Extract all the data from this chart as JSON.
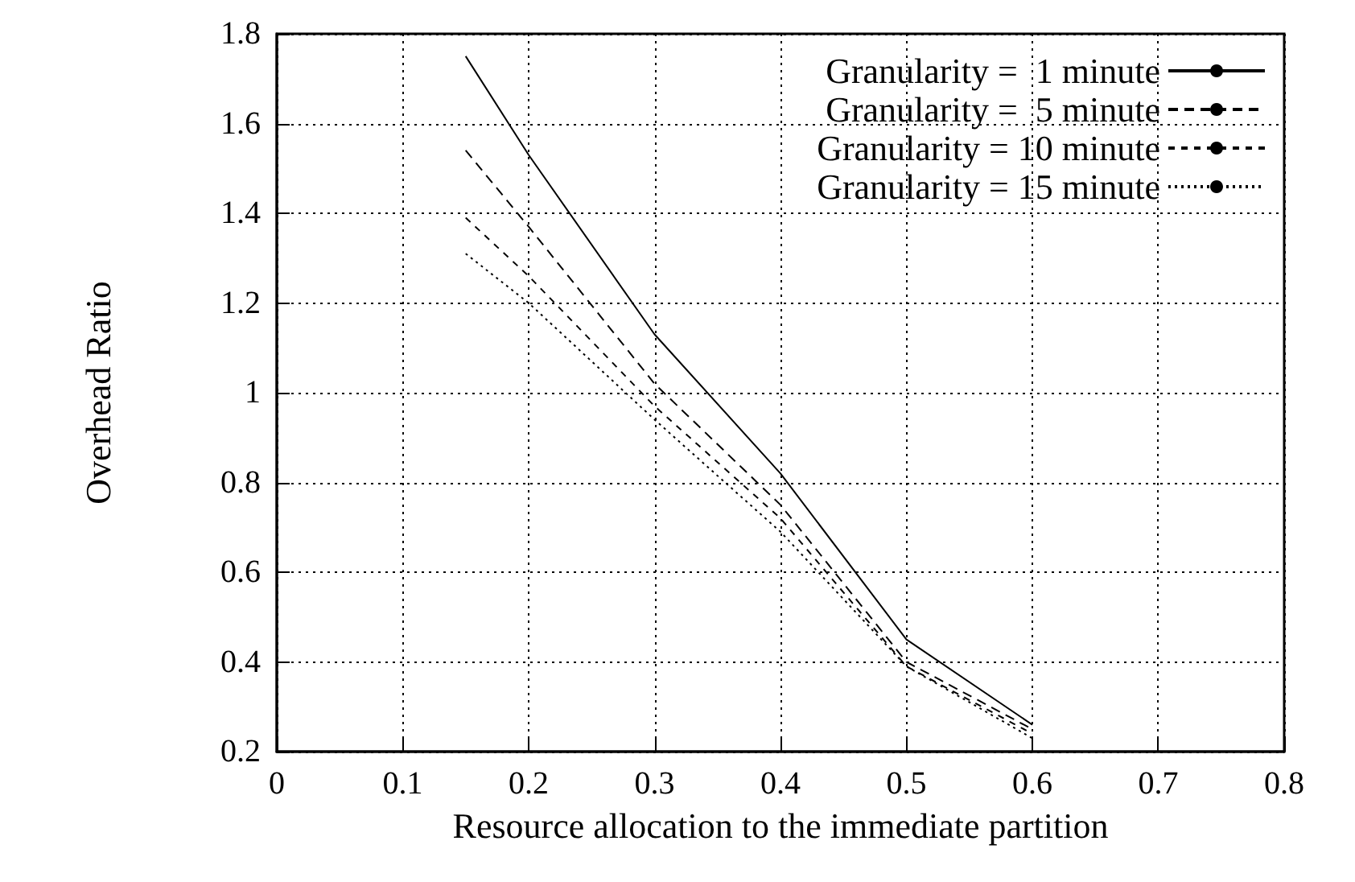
{
  "chart_data": {
    "type": "line",
    "xlabel": "Resource allocation to the immediate partition",
    "ylabel": "Overhead Ratio",
    "x": [
      0.15,
      0.2,
      0.3,
      0.4,
      0.5,
      0.6
    ],
    "series": [
      {
        "name": "Granularity =  1 minute",
        "color": "#000000",
        "line_style": "solid",
        "values": [
          1.75,
          1.53,
          1.13,
          0.82,
          0.45,
          0.26
        ]
      },
      {
        "name": "Granularity =  5 minute",
        "color": "#000000",
        "line_style": "dashed",
        "values": [
          1.54,
          1.37,
          1.02,
          0.75,
          0.4,
          0.25
        ]
      },
      {
        "name": "Granularity = 10 minute",
        "color": "#000000",
        "line_style": "dashed",
        "values": [
          1.39,
          1.26,
          0.97,
          0.72,
          0.39,
          0.24
        ]
      },
      {
        "name": "Granularity = 15 minute",
        "color": "#000000",
        "line_style": "dotted",
        "values": [
          1.31,
          1.2,
          0.94,
          0.69,
          0.39,
          0.23
        ]
      }
    ],
    "xlim": [
      0,
      0.8
    ],
    "xticks": [
      0,
      0.1,
      0.2,
      0.3,
      0.4,
      0.5,
      0.6,
      0.7,
      0.8
    ],
    "ylim": [
      0.2,
      1.8
    ],
    "yticks": [
      0.2,
      0.4,
      0.6,
      0.8,
      1,
      1.2,
      1.4,
      1.6,
      1.8
    ],
    "grid": true,
    "legend": "top right",
    "marker": "none"
  }
}
